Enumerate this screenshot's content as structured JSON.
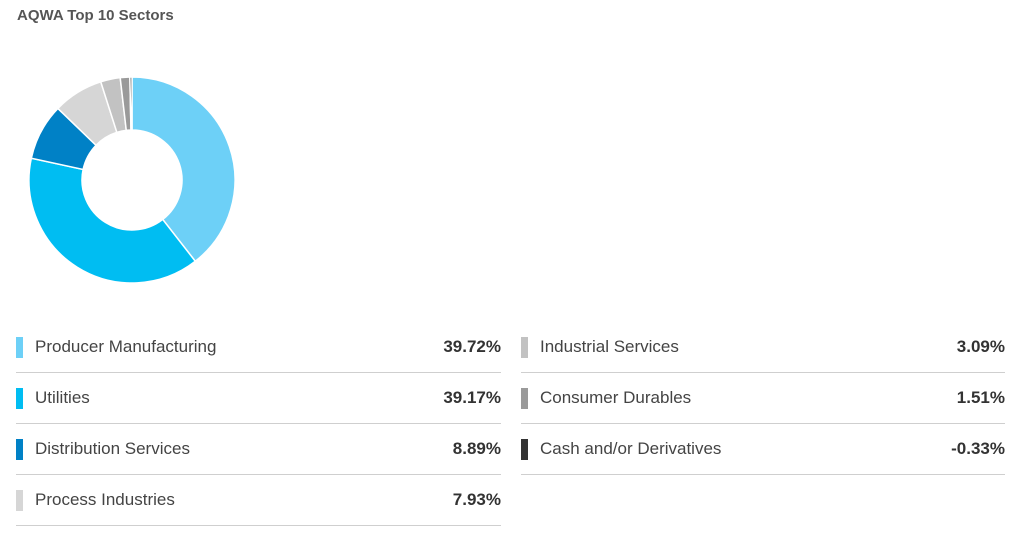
{
  "title": "AQWA Top 10 Sectors",
  "chart_data": {
    "type": "pie",
    "title": "AQWA Top 10 Sectors",
    "legend_placement": "bottom",
    "slices": [
      {
        "label": "Producer Manufacturing",
        "value": 39.72,
        "display": "39.72%",
        "color": "#6dd0f7"
      },
      {
        "label": "Utilities",
        "value": 39.17,
        "display": "39.17%",
        "color": "#00bdf2"
      },
      {
        "label": "Distribution Services",
        "value": 8.89,
        "display": "8.89%",
        "color": "#0081c6"
      },
      {
        "label": "Process Industries",
        "value": 7.93,
        "display": "7.93%",
        "color": "#d6d6d6"
      },
      {
        "label": "Industrial Services",
        "value": 3.09,
        "display": "3.09%",
        "color": "#c2c2c2"
      },
      {
        "label": "Consumer Durables",
        "value": 1.51,
        "display": "1.51%",
        "color": "#9a9a9a"
      },
      {
        "label": "Cash and/or Derivatives",
        "value": -0.33,
        "display": "-0.33%",
        "color": "#333333"
      }
    ]
  }
}
